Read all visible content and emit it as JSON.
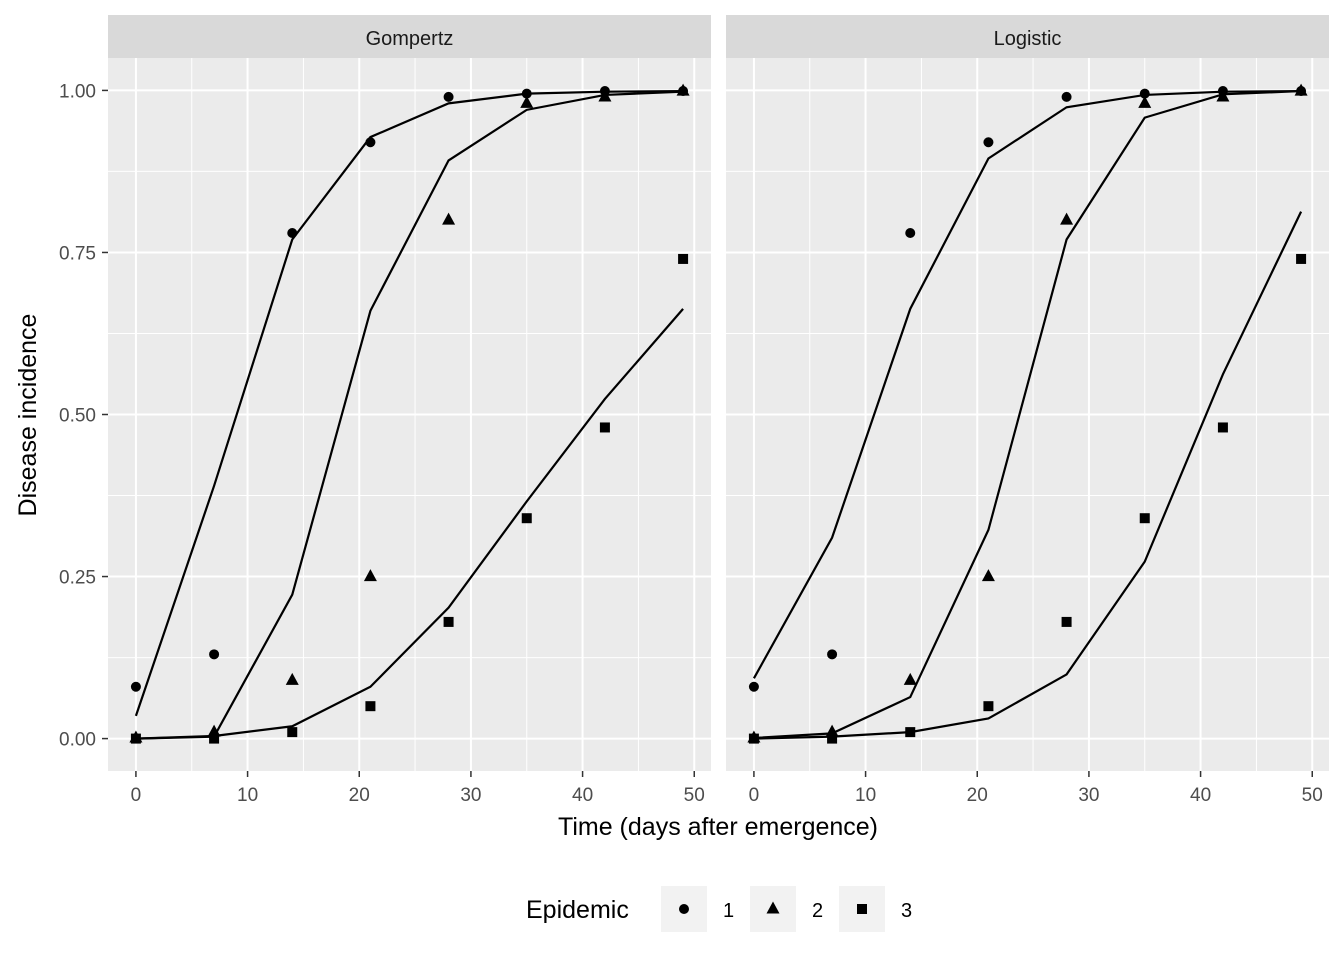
{
  "chart_data": {
    "type": "scatter",
    "xlabel": "Time (days after emergence)",
    "ylabel": "Disease incidence",
    "xlim": [
      -2.5,
      51.5
    ],
    "ylim": [
      -0.05,
      1.05
    ],
    "x_ticks": [
      0,
      10,
      20,
      30,
      40,
      50
    ],
    "x_tick_labels": [
      "0",
      "10",
      "20",
      "30",
      "40",
      "50"
    ],
    "y_ticks": [
      0,
      0.25,
      0.5,
      0.75,
      1.0
    ],
    "y_tick_labels": [
      "0.00",
      "0.25",
      "0.50",
      "0.75",
      "1.00"
    ],
    "grid": true,
    "legend": {
      "title": "Epidemic",
      "position": "bottom",
      "items": [
        {
          "label": "1",
          "shape": "circle"
        },
        {
          "label": "2",
          "shape": "triangle"
        },
        {
          "label": "3",
          "shape": "square"
        }
      ]
    },
    "x": [
      0,
      7,
      14,
      21,
      28,
      35,
      42,
      49
    ],
    "observed": [
      {
        "epidemic": "1",
        "shape": "circle",
        "values": [
          0.08,
          0.13,
          0.78,
          0.92,
          0.99,
          0.995,
          0.999,
          0.999
        ]
      },
      {
        "epidemic": "2",
        "shape": "triangle",
        "values": [
          0.001,
          0.01,
          0.09,
          0.25,
          0.8,
          0.98,
          0.99,
          0.999
        ]
      },
      {
        "epidemic": "3",
        "shape": "square",
        "values": [
          0.0,
          0.0,
          0.01,
          0.05,
          0.18,
          0.34,
          0.48,
          0.74
        ]
      }
    ],
    "panels": [
      {
        "title": "Gompertz",
        "fitted": [
          {
            "epidemic": "1",
            "values": [
              0.035,
              0.39,
              0.77,
              0.928,
              0.98,
              0.995,
              0.998,
              0.999
            ]
          },
          {
            "epidemic": "2",
            "values": [
              0.0,
              0.003,
              0.222,
              0.66,
              0.892,
              0.97,
              0.993,
              0.998
            ]
          },
          {
            "epidemic": "3",
            "values": [
              0.0,
              0.004,
              0.019,
              0.08,
              0.202,
              0.366,
              0.524,
              0.663
            ]
          }
        ]
      },
      {
        "title": "Logistic",
        "fitted": [
          {
            "epidemic": "1",
            "values": [
              0.093,
              0.31,
              0.663,
              0.895,
              0.974,
              0.993,
              0.998,
              0.999
            ]
          },
          {
            "epidemic": "2",
            "values": [
              0.001,
              0.008,
              0.064,
              0.322,
              0.77,
              0.958,
              0.994,
              0.999
            ]
          },
          {
            "epidemic": "3",
            "values": [
              0.0,
              0.003,
              0.01,
              0.031,
              0.099,
              0.273,
              0.562,
              0.813
            ]
          }
        ]
      }
    ]
  }
}
